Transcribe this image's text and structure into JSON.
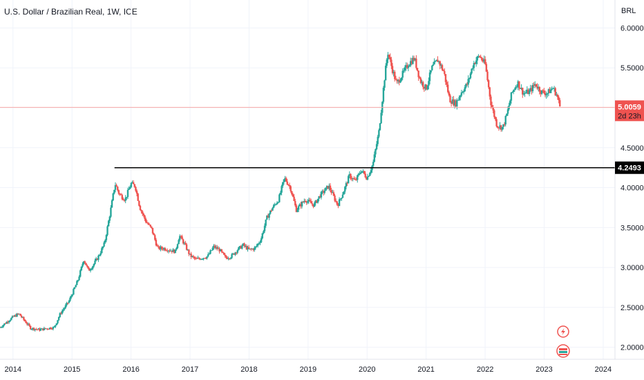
{
  "header": {
    "title": "U.S. Dollar / Brazilian Real, 1W, ICE",
    "currency": "BRL"
  },
  "price_tag": {
    "value": "5.0059",
    "countdown": "2d 23h"
  },
  "level_tag": {
    "value": "4.2493"
  },
  "icons": [
    "lightning-icon",
    "flag-icon"
  ],
  "colors": {
    "up": "#26a69a",
    "down": "#ef5350",
    "wick_up": "#26a69a",
    "wick_down": "#ef5350",
    "level_line": "#000000",
    "price_line": "#f7a9a8"
  },
  "chart_data": {
    "type": "candlestick",
    "title": "U.S. Dollar / Brazilian Real, 1W, ICE",
    "ylabel": "BRL",
    "xlim": [
      2013.78,
      2024.2
    ],
    "ylim": [
      1.85,
      6.35
    ],
    "y_ticks": [
      "6.0000",
      "5.5000",
      "5.0000",
      "4.5000",
      "4.0000",
      "3.5000",
      "3.0000",
      "2.5000",
      "2.0000"
    ],
    "x_ticks": [
      "2014",
      "2015",
      "2016",
      "2017",
      "2018",
      "2019",
      "2020",
      "2021",
      "2022",
      "2023",
      "2024"
    ],
    "horizontal_level": {
      "value": 4.2493,
      "from_x": 2015.72
    },
    "last_price": 5.0059,
    "close_path": [
      [
        2013.78,
        2.25
      ],
      [
        2013.9,
        2.32
      ],
      [
        2014.0,
        2.38
      ],
      [
        2014.1,
        2.42
      ],
      [
        2014.2,
        2.33
      ],
      [
        2014.3,
        2.24
      ],
      [
        2014.45,
        2.22
      ],
      [
        2014.6,
        2.24
      ],
      [
        2014.7,
        2.25
      ],
      [
        2014.8,
        2.42
      ],
      [
        2014.95,
        2.58
      ],
      [
        2015.1,
        2.84
      ],
      [
        2015.2,
        3.1
      ],
      [
        2015.28,
        2.96
      ],
      [
        2015.35,
        3.02
      ],
      [
        2015.45,
        3.14
      ],
      [
        2015.55,
        3.3
      ],
      [
        2015.65,
        3.7
      ],
      [
        2015.73,
        4.05
      ],
      [
        2015.8,
        3.92
      ],
      [
        2015.9,
        3.85
      ],
      [
        2016.0,
        4.05
      ],
      [
        2016.07,
        4.02
      ],
      [
        2016.15,
        3.75
      ],
      [
        2016.25,
        3.58
      ],
      [
        2016.35,
        3.48
      ],
      [
        2016.45,
        3.24
      ],
      [
        2016.55,
        3.24
      ],
      [
        2016.65,
        3.22
      ],
      [
        2016.75,
        3.2
      ],
      [
        2016.82,
        3.4
      ],
      [
        2016.9,
        3.3
      ],
      [
        2017.0,
        3.15
      ],
      [
        2017.1,
        3.1
      ],
      [
        2017.2,
        3.12
      ],
      [
        2017.3,
        3.14
      ],
      [
        2017.4,
        3.26
      ],
      [
        2017.5,
        3.22
      ],
      [
        2017.6,
        3.12
      ],
      [
        2017.7,
        3.14
      ],
      [
        2017.8,
        3.22
      ],
      [
        2017.9,
        3.28
      ],
      [
        2018.0,
        3.22
      ],
      [
        2018.1,
        3.24
      ],
      [
        2018.2,
        3.35
      ],
      [
        2018.3,
        3.62
      ],
      [
        2018.4,
        3.75
      ],
      [
        2018.5,
        3.85
      ],
      [
        2018.6,
        4.12
      ],
      [
        2018.7,
        4.0
      ],
      [
        2018.8,
        3.72
      ],
      [
        2018.95,
        3.85
      ],
      [
        2019.1,
        3.78
      ],
      [
        2019.2,
        3.9
      ],
      [
        2019.35,
        4.02
      ],
      [
        2019.5,
        3.78
      ],
      [
        2019.6,
        3.95
      ],
      [
        2019.7,
        4.15
      ],
      [
        2019.8,
        4.08
      ],
      [
        2019.9,
        4.22
      ],
      [
        2020.0,
        4.12
      ],
      [
        2020.1,
        4.3
      ],
      [
        2020.2,
        4.7
      ],
      [
        2020.3,
        5.4
      ],
      [
        2020.35,
        5.7
      ],
      [
        2020.42,
        5.5
      ],
      [
        2020.5,
        5.3
      ],
      [
        2020.6,
        5.42
      ],
      [
        2020.7,
        5.55
      ],
      [
        2020.8,
        5.62
      ],
      [
        2020.9,
        5.34
      ],
      [
        2021.0,
        5.24
      ],
      [
        2021.1,
        5.5
      ],
      [
        2021.2,
        5.6
      ],
      [
        2021.3,
        5.45
      ],
      [
        2021.4,
        5.1
      ],
      [
        2021.5,
        5.05
      ],
      [
        2021.6,
        5.2
      ],
      [
        2021.7,
        5.3
      ],
      [
        2021.8,
        5.55
      ],
      [
        2021.9,
        5.65
      ],
      [
        2022.0,
        5.55
      ],
      [
        2022.1,
        5.05
      ],
      [
        2022.2,
        4.78
      ],
      [
        2022.3,
        4.75
      ],
      [
        2022.38,
        4.95
      ],
      [
        2022.45,
        5.18
      ],
      [
        2022.55,
        5.32
      ],
      [
        2022.65,
        5.18
      ],
      [
        2022.75,
        5.2
      ],
      [
        2022.85,
        5.3
      ],
      [
        2022.95,
        5.2
      ],
      [
        2023.05,
        5.18
      ],
      [
        2023.15,
        5.25
      ],
      [
        2023.22,
        5.15
      ],
      [
        2023.27,
        5.01
      ]
    ]
  }
}
